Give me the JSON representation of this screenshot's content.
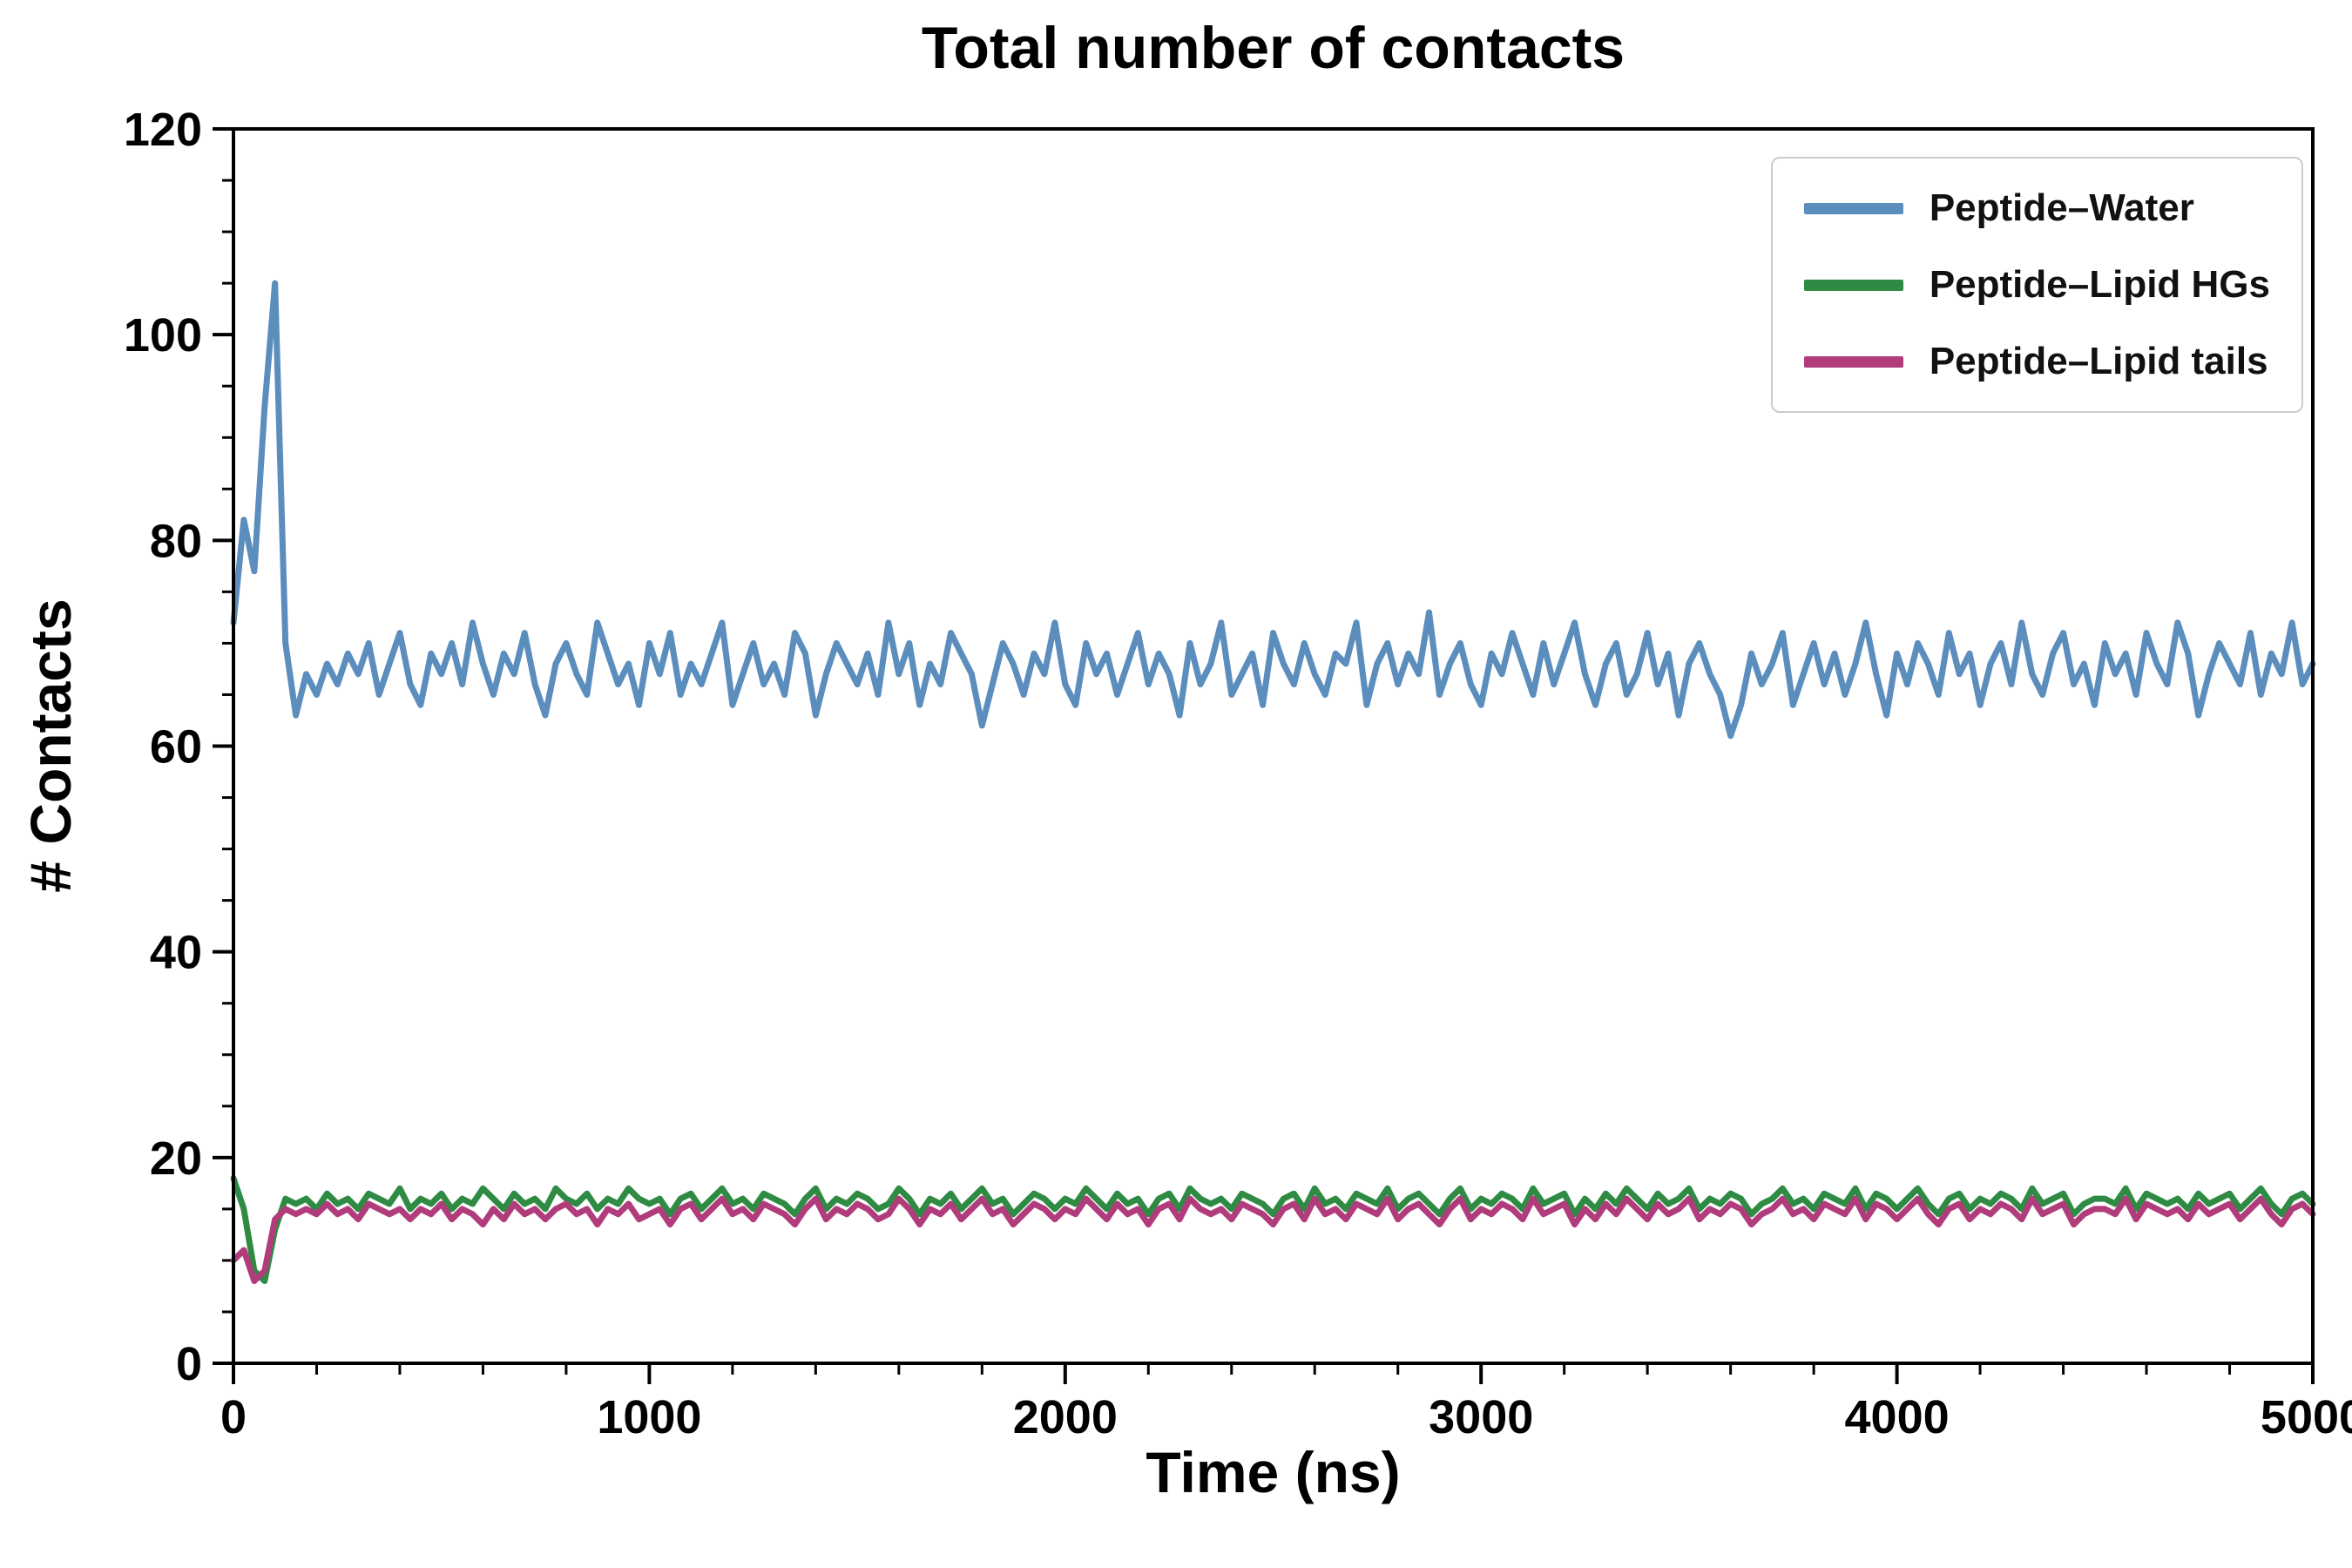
{
  "figure": {
    "background": "#ffffff",
    "axis_color": "#000000"
  },
  "chart_data": {
    "type": "line",
    "title": "Total number of contacts",
    "xlabel": "Time (ns)",
    "ylabel": "# Contacts",
    "xlim": [
      0,
      5000
    ],
    "ylim": [
      0,
      120
    ],
    "xticks": [
      0,
      1000,
      2000,
      3000,
      4000,
      5000
    ],
    "yticks": [
      0,
      20,
      40,
      60,
      80,
      100,
      120
    ],
    "x_minor_step": 200,
    "y_minor_step": 5,
    "grid": false,
    "legend_position": "upper right",
    "x": [
      0,
      25,
      50,
      75,
      100,
      125,
      150,
      175,
      200,
      225,
      250,
      275,
      300,
      325,
      350,
      375,
      400,
      425,
      450,
      475,
      500,
      525,
      550,
      575,
      600,
      625,
      650,
      675,
      700,
      725,
      750,
      775,
      800,
      825,
      850,
      875,
      900,
      925,
      950,
      975,
      1000,
      1025,
      1050,
      1075,
      1100,
      1125,
      1150,
      1175,
      1200,
      1225,
      1250,
      1275,
      1300,
      1325,
      1350,
      1375,
      1400,
      1425,
      1450,
      1475,
      1500,
      1525,
      1550,
      1575,
      1600,
      1625,
      1650,
      1675,
      1700,
      1725,
      1750,
      1775,
      1800,
      1825,
      1850,
      1875,
      1900,
      1925,
      1950,
      1975,
      2000,
      2025,
      2050,
      2075,
      2100,
      2125,
      2150,
      2175,
      2200,
      2225,
      2250,
      2275,
      2300,
      2325,
      2350,
      2375,
      2400,
      2425,
      2450,
      2475,
      2500,
      2525,
      2550,
      2575,
      2600,
      2625,
      2650,
      2675,
      2700,
      2725,
      2750,
      2775,
      2800,
      2825,
      2850,
      2875,
      2900,
      2925,
      2950,
      2975,
      3000,
      3025,
      3050,
      3075,
      3100,
      3125,
      3150,
      3175,
      3200,
      3225,
      3250,
      3275,
      3300,
      3325,
      3350,
      3375,
      3400,
      3425,
      3450,
      3475,
      3500,
      3525,
      3550,
      3575,
      3600,
      3625,
      3650,
      3675,
      3700,
      3725,
      3750,
      3775,
      3800,
      3825,
      3850,
      3875,
      3900,
      3925,
      3950,
      3975,
      4000,
      4025,
      4050,
      4075,
      4100,
      4125,
      4150,
      4175,
      4200,
      4225,
      4250,
      4275,
      4300,
      4325,
      4350,
      4375,
      4400,
      4425,
      4450,
      4475,
      4500,
      4525,
      4550,
      4575,
      4600,
      4625,
      4650,
      4675,
      4700,
      4725,
      4750,
      4775,
      4800,
      4825,
      4850,
      4875,
      4900,
      4925,
      4950,
      4975,
      5000
    ],
    "series": [
      {
        "name": "Peptide–Water",
        "color": "#5b8dbd",
        "values": [
          72,
          82,
          77,
          93,
          105,
          70,
          63,
          67,
          65,
          68,
          66,
          69,
          67,
          70,
          65,
          68,
          71,
          66,
          64,
          69,
          67,
          70,
          66,
          72,
          68,
          65,
          69,
          67,
          71,
          66,
          63,
          68,
          70,
          67,
          65,
          72,
          69,
          66,
          68,
          64,
          70,
          67,
          71,
          65,
          68,
          66,
          69,
          72,
          64,
          67,
          70,
          66,
          68,
          65,
          71,
          69,
          63,
          67,
          70,
          68,
          66,
          69,
          65,
          72,
          67,
          70,
          64,
          68,
          66,
          71,
          69,
          67,
          62,
          66,
          70,
          68,
          65,
          69,
          67,
          72,
          66,
          64,
          70,
          67,
          69,
          65,
          68,
          71,
          66,
          69,
          67,
          63,
          70,
          66,
          68,
          72,
          65,
          67,
          69,
          64,
          71,
          68,
          66,
          70,
          67,
          65,
          69,
          68,
          72,
          64,
          68,
          70,
          66,
          69,
          67,
          73,
          65,
          68,
          70,
          66,
          64,
          69,
          67,
          71,
          68,
          65,
          70,
          66,
          69,
          72,
          67,
          64,
          68,
          70,
          65,
          67,
          71,
          66,
          69,
          63,
          68,
          70,
          67,
          65,
          61,
          64,
          69,
          66,
          68,
          71,
          64,
          67,
          70,
          66,
          69,
          65,
          68,
          72,
          67,
          63,
          69,
          66,
          70,
          68,
          65,
          71,
          67,
          69,
          64,
          68,
          70,
          66,
          72,
          67,
          65,
          69,
          71,
          66,
          68,
          64,
          70,
          67,
          69,
          65,
          71,
          68,
          66,
          72,
          69,
          63,
          67,
          70,
          68,
          66,
          71,
          65,
          69,
          67,
          72,
          66,
          68
        ]
      },
      {
        "name": "Peptide–Lipid HGs",
        "color": "#2f8b44",
        "values": [
          18,
          15,
          9,
          8,
          13,
          16,
          15.5,
          16,
          15,
          16.5,
          15.5,
          16,
          15,
          16.5,
          16,
          15.5,
          17,
          15,
          16,
          15.5,
          16.5,
          15,
          16,
          15.5,
          17,
          16,
          15,
          16.5,
          15.5,
          16,
          15,
          17,
          16,
          15.5,
          16.5,
          15,
          16,
          15.5,
          17,
          16,
          15.5,
          16,
          14.5,
          16,
          16.5,
          15,
          16,
          17,
          15.5,
          16,
          15,
          16.5,
          16,
          15.5,
          14.5,
          16,
          17,
          15,
          16,
          15.5,
          16.5,
          16,
          15,
          15.5,
          17,
          16,
          14.5,
          16,
          15.5,
          16.5,
          15,
          16,
          17,
          15.5,
          16,
          14.5,
          15.5,
          16.5,
          16,
          15,
          16,
          15.5,
          17,
          16,
          15,
          16.5,
          15.5,
          16,
          14.5,
          16,
          16.5,
          15,
          17,
          16,
          15.5,
          16,
          15,
          16.5,
          16,
          15.5,
          14.5,
          16,
          16.5,
          15,
          17,
          15.5,
          16,
          15,
          16.5,
          16,
          15.5,
          17,
          15,
          16,
          16.5,
          15.5,
          14.5,
          16,
          17,
          15,
          16,
          15.5,
          16.5,
          16,
          15,
          17,
          15.5,
          16,
          16.5,
          14.5,
          16,
          15,
          16.5,
          15.5,
          17,
          16,
          15,
          16.5,
          15.5,
          16,
          17,
          15,
          16,
          15.5,
          16.5,
          16,
          14.5,
          15.5,
          16,
          17,
          15.5,
          16,
          15,
          16.5,
          16,
          15.5,
          17,
          15,
          16.5,
          16,
          15,
          16,
          17,
          15.5,
          14.5,
          16,
          16.5,
          15,
          16,
          15.5,
          16.5,
          16,
          15,
          17,
          15.5,
          16,
          16.5,
          14.5,
          15.5,
          16,
          16,
          15.5,
          17,
          15,
          16.5,
          16,
          15.5,
          16,
          15,
          16.5,
          15.5,
          16,
          16.5,
          15,
          16,
          17,
          15.5,
          14.5,
          16,
          16.5,
          15.5
        ]
      },
      {
        "name": "Peptide–Lipid tails",
        "color": "#b13c7c",
        "values": [
          10,
          11,
          8,
          9,
          14,
          15,
          14.5,
          15,
          14.5,
          15.5,
          14.5,
          15,
          14,
          15.5,
          15,
          14.5,
          15,
          14,
          15,
          14.5,
          15.5,
          14,
          15,
          14.5,
          13.5,
          15,
          14,
          15.5,
          14.5,
          15,
          14,
          15,
          15.5,
          14.5,
          15,
          13.5,
          15,
          14.5,
          15.5,
          14,
          14.5,
          15,
          13.5,
          15,
          15.5,
          14,
          15,
          16,
          14.5,
          15,
          14,
          15.5,
          15,
          14.5,
          13.5,
          15,
          16,
          14,
          15,
          14.5,
          15.5,
          15,
          14,
          14.5,
          16,
          15,
          13.5,
          15,
          14.5,
          15.5,
          14,
          15,
          16,
          14.5,
          15,
          13.5,
          14.5,
          15.5,
          15,
          14,
          15,
          14.5,
          16,
          15,
          14,
          15.5,
          14.5,
          15,
          13.5,
          15,
          15.5,
          14,
          16,
          15,
          14.5,
          15,
          14,
          15.5,
          15,
          14.5,
          13.5,
          15,
          15.5,
          14,
          16,
          14.5,
          15,
          14,
          15.5,
          15,
          14.5,
          16,
          14,
          15,
          15.5,
          14.5,
          13.5,
          15,
          16,
          14,
          15,
          14.5,
          15.5,
          15,
          14,
          16,
          14.5,
          15,
          15.5,
          13.5,
          15,
          14,
          15.5,
          14.5,
          16,
          15,
          14,
          15.5,
          14.5,
          15,
          16,
          14,
          15,
          14.5,
          15.5,
          15,
          13.5,
          14.5,
          15,
          16,
          14.5,
          15,
          14,
          15.5,
          15,
          14.5,
          16,
          14,
          15.5,
          15,
          14,
          15,
          16,
          14.5,
          13.5,
          15,
          15.5,
          14,
          15,
          14.5,
          15.5,
          15,
          14,
          16,
          14.5,
          15,
          15.5,
          13.5,
          14.5,
          15,
          15,
          14.5,
          16,
          14,
          15.5,
          15,
          14.5,
          15,
          14,
          15.5,
          14.5,
          15,
          15.5,
          14,
          15,
          16,
          14.5,
          13.5,
          15,
          15.5,
          14.5
        ]
      }
    ]
  }
}
